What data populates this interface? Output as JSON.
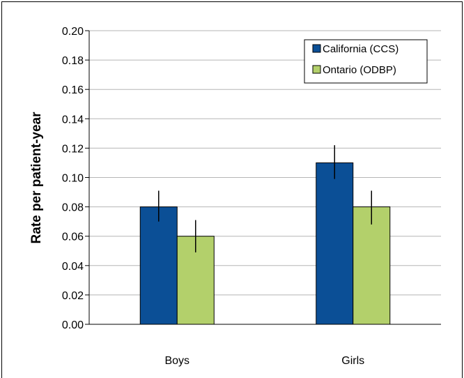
{
  "chart_data": {
    "type": "bar",
    "title": "",
    "xlabel": "",
    "ylabel": "Rate per patient-year",
    "categories": [
      "Boys",
      "Girls"
    ],
    "series": [
      {
        "name": "California (CCS)",
        "color": "#0b4f96",
        "values": [
          0.08,
          0.11
        ],
        "error_low": [
          0.07,
          0.099
        ],
        "error_high": [
          0.091,
          0.122
        ]
      },
      {
        "name": "Ontario (ODBP)",
        "color": "#b3d06b",
        "values": [
          0.06,
          0.08
        ],
        "error_low": [
          0.049,
          0.068
        ],
        "error_high": [
          0.071,
          0.091
        ]
      }
    ],
    "ylim": [
      0,
      0.2
    ],
    "yticks": [
      "0.00",
      "0.02",
      "0.04",
      "0.06",
      "0.08",
      "0.10",
      "0.12",
      "0.14",
      "0.16",
      "0.18",
      "0.20"
    ],
    "grid": true,
    "legend_position": "top-right"
  }
}
